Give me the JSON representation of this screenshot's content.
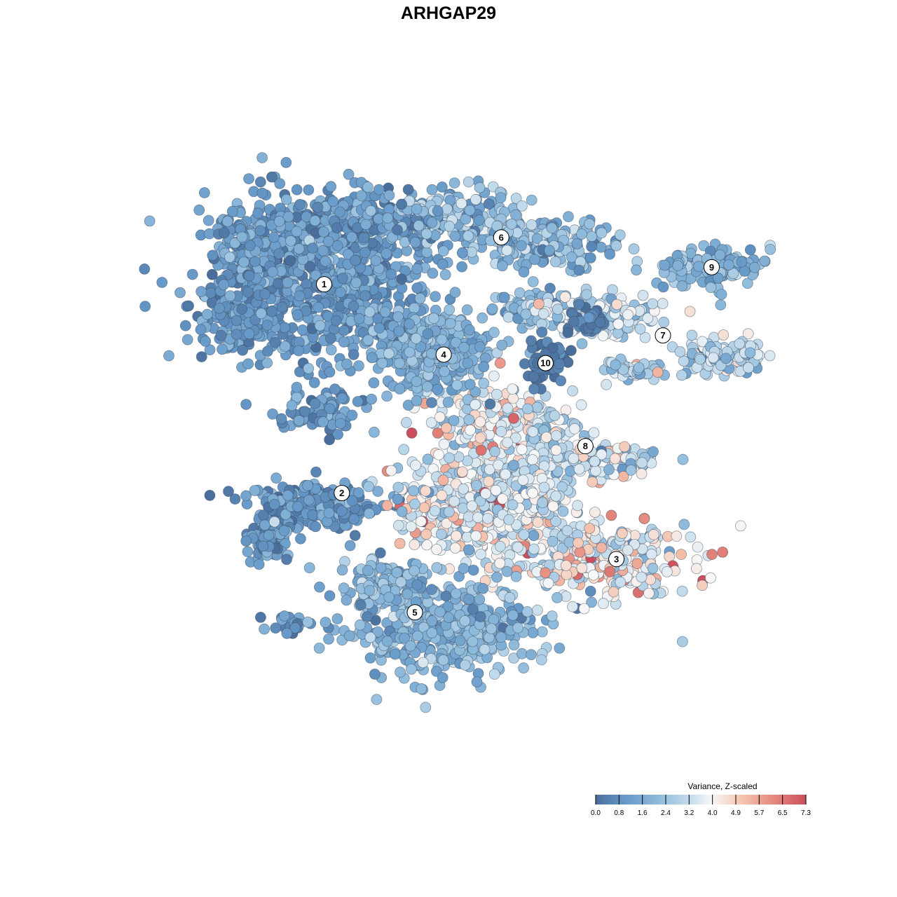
{
  "chart_data": {
    "type": "scatter",
    "title": "ARHGAP29",
    "xlabel": "",
    "ylabel": "",
    "grid": false,
    "legend": {
      "title": "Variance, Z-scaled",
      "placement": "bottom-right",
      "range": [
        0.0,
        7.3
      ],
      "tick_labels": [
        "0.0",
        "0.8",
        "1.6",
        "2.4",
        "3.2",
        "4.0",
        "4.9",
        "5.7",
        "6.5",
        "7.3"
      ],
      "colors": [
        "#4a6e9b",
        "#6699c8",
        "#8fbbdc",
        "#c4dcec",
        "#f7f7f7",
        "#f5c3ad",
        "#e3837a",
        "#cc4e5c"
      ]
    },
    "clusters": [
      {
        "label": "1",
        "x": -7.2,
        "y": 5.9,
        "value": 1.1
      },
      {
        "label": "2",
        "x": -6.4,
        "y": -3.9,
        "value": 1.0
      },
      {
        "label": "3",
        "x": 6.0,
        "y": -7.0,
        "value": 3.6
      },
      {
        "label": "4",
        "x": -1.8,
        "y": 2.6,
        "value": 1.8
      },
      {
        "label": "5",
        "x": -3.1,
        "y": -9.5,
        "value": 1.9
      },
      {
        "label": "6",
        "x": 0.8,
        "y": 8.1,
        "value": 2.0
      },
      {
        "label": "7",
        "x": 8.1,
        "y": 3.5,
        "value": 3.0
      },
      {
        "label": "8",
        "x": 4.6,
        "y": -1.7,
        "value": 3.3
      },
      {
        "label": "9",
        "x": 10.3,
        "y": 6.7,
        "value": 1.9
      },
      {
        "label": "10",
        "x": 2.8,
        "y": 2.2,
        "value": 0.3
      }
    ]
  }
}
